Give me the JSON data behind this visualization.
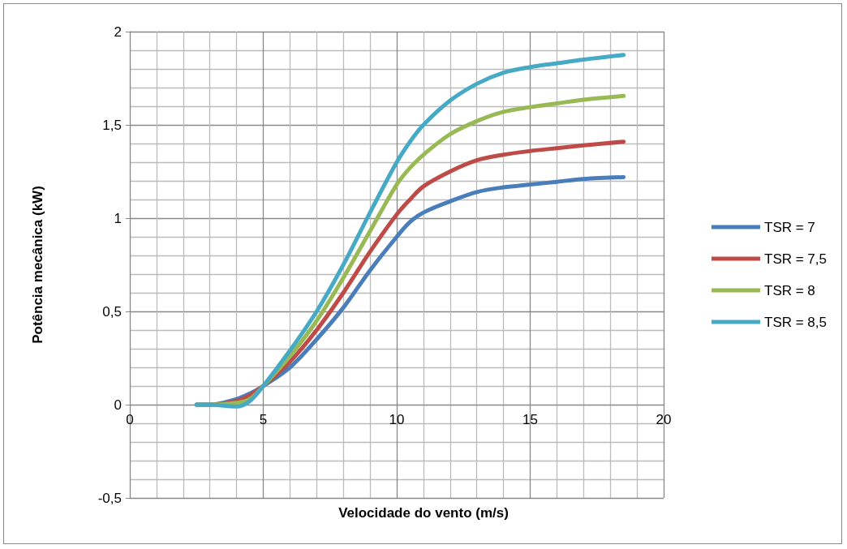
{
  "chart_data": {
    "type": "line",
    "xlabel": "Velocidade do vento (m/s)",
    "ylabel": "Potência mecânica (kW)",
    "xlim": [
      0,
      20
    ],
    "xticks": [
      0,
      5,
      10,
      15,
      20
    ],
    "ylim": [
      -0.5,
      2
    ],
    "yticks": [
      {
        "value": -0.5,
        "label": "-0,5"
      },
      0,
      {
        "value": 0.5,
        "label": "0,5"
      },
      1,
      {
        "value": 1.5,
        "label": "1,5"
      },
      2
    ],
    "grid": true,
    "legend": "right",
    "marker": "none",
    "line_style": "solid",
    "x": [
      2.5,
      3,
      4,
      4.5,
      5,
      6,
      7,
      8,
      9,
      10,
      10.5,
      11,
      12,
      13,
      14,
      15,
      16,
      17,
      18.5
    ],
    "series": [
      {
        "name": "TSR = 7",
        "color": "#4a7ebb",
        "values": [
          0,
          0,
          0.03,
          0.06,
          0.1,
          0.2,
          0.35,
          0.52,
          0.72,
          0.9,
          0.98,
          1.03,
          1.09,
          1.14,
          1.165,
          1.18,
          1.195,
          1.21,
          1.22
        ]
      },
      {
        "name": "TSR = 7,5",
        "color": "#be4b48",
        "values": [
          0,
          0,
          0.02,
          0.05,
          0.1,
          0.23,
          0.4,
          0.6,
          0.82,
          1.02,
          1.1,
          1.17,
          1.25,
          1.31,
          1.34,
          1.36,
          1.375,
          1.39,
          1.41
        ]
      },
      {
        "name": "TSR = 8",
        "color": "#98b954",
        "values": [
          0,
          0,
          0.01,
          0.03,
          0.1,
          0.26,
          0.45,
          0.68,
          0.93,
          1.18,
          1.27,
          1.34,
          1.45,
          1.52,
          1.57,
          1.595,
          1.615,
          1.635,
          1.655
        ]
      },
      {
        "name": "TSR = 8,5",
        "color": "#46aac5",
        "values": [
          0,
          0,
          -0.01,
          0.02,
          0.1,
          0.29,
          0.5,
          0.75,
          1.03,
          1.3,
          1.41,
          1.5,
          1.63,
          1.72,
          1.78,
          1.81,
          1.83,
          1.85,
          1.875
        ]
      }
    ]
  }
}
